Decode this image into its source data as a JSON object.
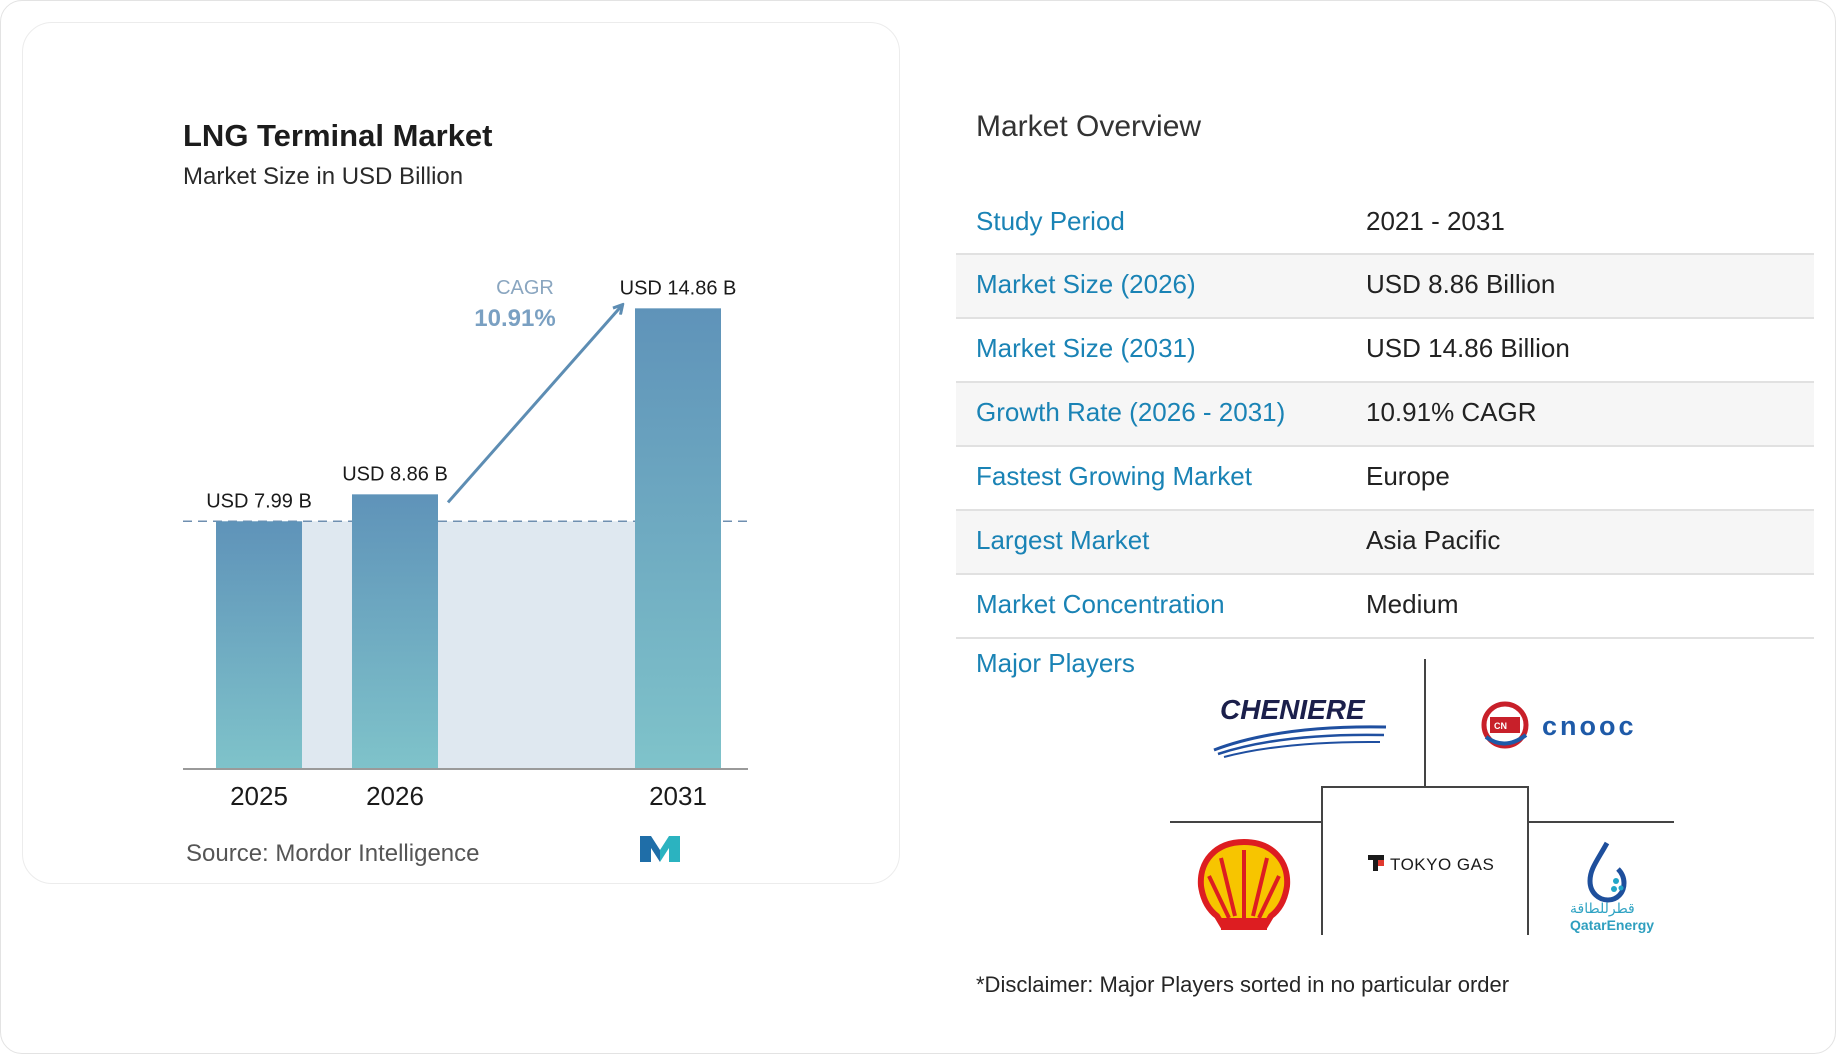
{
  "chart_data": {
    "type": "bar",
    "title": "LNG Terminal Market",
    "subtitle": "Market Size in USD Billion",
    "categories": [
      "2025",
      "2026",
      "2031"
    ],
    "values": [
      7.99,
      8.86,
      14.86
    ],
    "value_labels": [
      "USD 7.99 B",
      "USD 8.86 B",
      "USD 14.86 B"
    ],
    "annotation": {
      "label": "CAGR",
      "value": "10.91%"
    },
    "colors": {
      "bar_top": "#5f93b9",
      "bar_bottom": "#7fc3ca",
      "band": "#dfe8f0",
      "arrow": "#5d8db3"
    }
  },
  "source": "Source: Mordor Intelligence",
  "overview": {
    "title": "Market Overview",
    "rows": [
      {
        "label": "Study Period",
        "value": "2021 - 2031"
      },
      {
        "label": "Market Size (2026)",
        "value": "USD 8.86 Billion"
      },
      {
        "label": "Market Size (2031)",
        "value": "USD 14.86 Billion"
      },
      {
        "label": "Growth Rate (2026 - 2031)",
        "value": "10.91% CAGR"
      },
      {
        "label": "Fastest Growing Market",
        "value": "Europe"
      },
      {
        "label": "Largest Market",
        "value": "Asia Pacific"
      },
      {
        "label": "Market Concentration",
        "value": "Medium"
      }
    ],
    "players_label": "Major Players",
    "players": [
      "CHENIERE",
      "CNOOC",
      "Shell",
      "TOKYO GAS",
      "QatarEnergy"
    ],
    "disclaimer": "*Disclaimer: Major Players sorted in no particular order"
  },
  "accent_color": "#1a83b5"
}
